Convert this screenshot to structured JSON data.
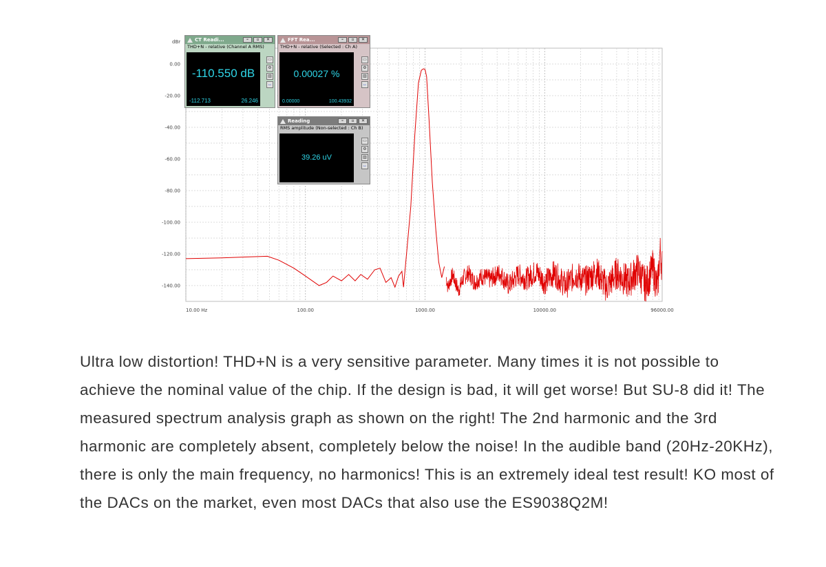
{
  "chart_data": {
    "type": "line",
    "ylabel": "dBr",
    "x_scale": "log",
    "xlim": [
      10,
      96000
    ],
    "ylim": [
      -150,
      10
    ],
    "y_ticks": [
      0,
      -20,
      -40,
      -60,
      -80,
      -100,
      -120,
      -140
    ],
    "y_tick_labels": [
      "0.00",
      "-20.00",
      "-40.00",
      "-60.00",
      "-80.00",
      "-100.00",
      "-120.00",
      "-140.00"
    ],
    "x_ticks": [
      10,
      100,
      1000,
      10000,
      96000
    ],
    "x_tick_labels": [
      "10.00 Hz",
      "100.00",
      "1000.00",
      "10000.00",
      "96000.00"
    ],
    "grid": true,
    "line_color": "#e00000",
    "series": [
      {
        "x": [
          10,
          20,
          30,
          48,
          60,
          80,
          100,
          130,
          150,
          170,
          200,
          230,
          260,
          290,
          330,
          380,
          420,
          470,
          520,
          560,
          600,
          640,
          660,
          700,
          760,
          820,
          880,
          930,
          970,
          1000,
          1030,
          1080,
          1150,
          1230,
          1300,
          1380,
          1450,
          1550,
          1700,
          1900,
          2100,
          2300,
          2600,
          3000,
          3500,
          4200,
          5000,
          6000,
          7000,
          8500,
          10000,
          12000,
          15000,
          18000,
          22000,
          27000,
          33000,
          40000,
          50000,
          60000,
          70000,
          80000,
          88000,
          92000,
          96000
        ],
        "y": [
          -123,
          -122.5,
          -122,
          -121.5,
          -124,
          -129,
          -134,
          -140,
          -138,
          -134,
          -137,
          -133,
          -137,
          -133,
          -136,
          -130,
          -129,
          -138,
          -135,
          -141,
          -134,
          -131,
          -141,
          -120,
          -90,
          -45,
          -12,
          -4,
          -3,
          -3.5,
          -8,
          -35,
          -75,
          -105,
          -125,
          -135,
          -128,
          -141,
          -133,
          -143,
          -135,
          -132,
          -138,
          -134,
          -136,
          -132,
          -140,
          -133,
          -136,
          -131,
          -138,
          -132,
          -140,
          -133,
          -137,
          -131,
          -141,
          -132,
          -138,
          -130,
          -140,
          -129,
          -142,
          -118,
          -128
        ],
        "noise_start_hz": 1500,
        "noise_amplitude_db": 12
      }
    ]
  },
  "windows": [
    {
      "title": "CT Readi...",
      "subtitle": "THD+N - relative (Channel A RMS)",
      "value": "-110.550 dB",
      "min": "-112.713",
      "max": "26.246",
      "titlebar_color": "#7fa98c",
      "body_color": "#bcd6c2"
    },
    {
      "title": "FFT Rea...",
      "subtitle": "THD+N - relative (Selected : Ch A)",
      "value": "0.00027 %",
      "min": "0.00000",
      "max": "100.43932",
      "titlebar_color": "#b89496",
      "body_color": "#d6c4c6"
    },
    {
      "title": "Reading",
      "subtitle": "RMS amplitude (Non-selected : Ch B)",
      "value": "39.26 uV",
      "titlebar_color": "#7c7c7c",
      "body_color": "#c6c6c6"
    }
  ],
  "display_color": "#2fd6e8",
  "paragraph": "Ultra low distortion! THD+N is a very sensitive parameter. Many times it is not possible to achieve the nominal value of the chip. If the design is bad, it will get worse! But SU-8 did it! The measured spectrum analysis graph as shown on the right! The 2nd harmonic and the 3rd harmonic are completely absent, completely below the noise! In the audible band (20Hz-20KHz), there is only the main frequency, no harmonics! This is an extremely ideal test result! KO most of the DACs on the market, even most DACs that also use the ES9038Q2M!"
}
